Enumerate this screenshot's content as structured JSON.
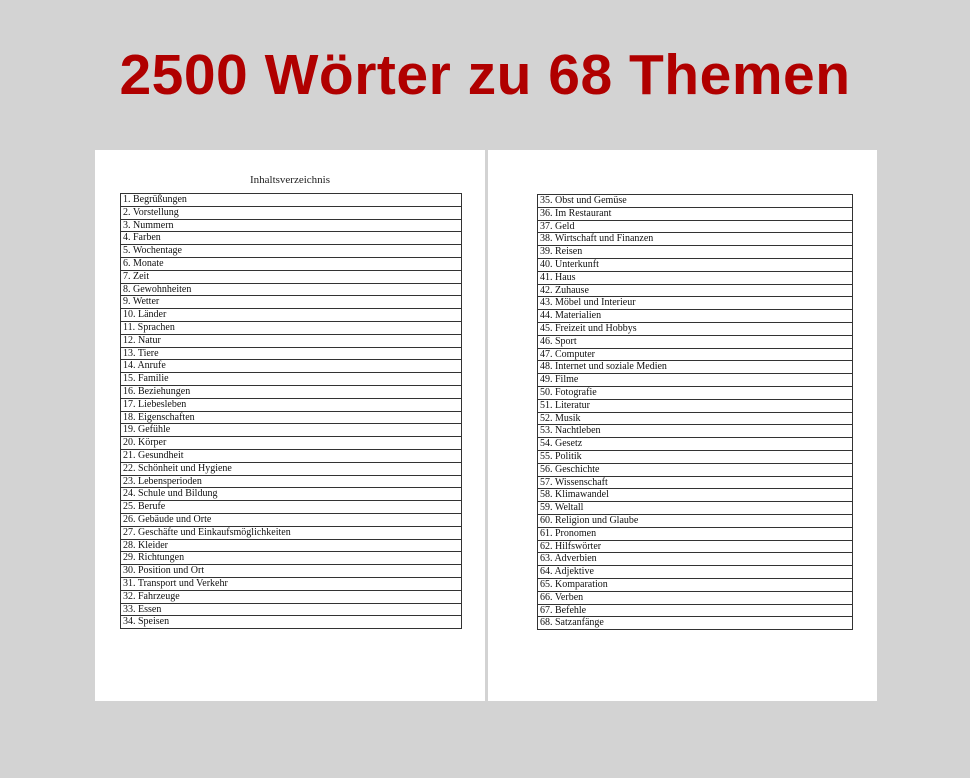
{
  "title": "2500 Wörter zu 68 Themen",
  "left_page": {
    "heading": "Inhaltsverzeichnis",
    "items": [
      "1. Begrüßungen",
      "2. Vorstellung",
      "3. Nummern",
      "4. Farben",
      "5. Wochentage",
      "6. Monate",
      "7. Zeit",
      "8. Gewohnheiten",
      "9. Wetter",
      "10. Länder",
      "11. Sprachen",
      "12. Natur",
      "13. Tiere",
      "14. Anrufe",
      "15. Familie",
      "16. Beziehungen",
      "17. Liebesleben",
      "18. Eigenschaften",
      "19. Gefühle",
      "20. Körper",
      "21. Gesundheit",
      "22. Schönheit und Hygiene",
      "23. Lebensperioden",
      "24. Schule und Bildung",
      "25. Berufe",
      "26. Gebäude und Orte",
      "27. Geschäfte und Einkaufsmöglichkeiten",
      "28. Kleider",
      "29. Richtungen",
      "30. Position und Ort",
      "31. Transport und Verkehr",
      "32. Fahrzeuge",
      "33. Essen",
      "34. Speisen"
    ]
  },
  "right_page": {
    "items": [
      "35. Obst und Gemüse",
      "36. Im Restaurant",
      "37. Geld",
      "38. Wirtschaft und Finanzen",
      "39. Reisen",
      "40. Unterkunft",
      "41. Haus",
      "42. Zuhause",
      "43. Möbel und Interieur",
      "44. Materialien",
      "45. Freizeit und Hobbys",
      "46. Sport",
      "47. Computer",
      "48. Internet und soziale Medien",
      "49. Filme",
      "50. Fotografie",
      "51. Literatur",
      "52. Musik",
      "53. Nachtleben",
      "54. Gesetz",
      "55. Politik",
      "56. Geschichte",
      "57. Wissenschaft",
      "58. Klimawandel",
      "59. Weltall",
      "60. Religion und Glaube",
      "61. Pronomen",
      "62. Hilfswörter",
      "63. Adverbien",
      "64. Adjektive",
      "65. Komparation",
      "66. Verben",
      "67. Befehle",
      "68. Satzanfänge"
    ]
  },
  "colors": {
    "title": "#b00000",
    "background": "#d3d3d3",
    "page": "#ffffff"
  }
}
